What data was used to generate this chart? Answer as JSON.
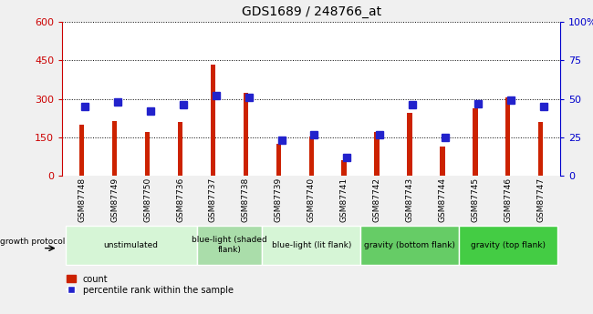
{
  "title": "GDS1689 / 248766_at",
  "samples": [
    "GSM87748",
    "GSM87749",
    "GSM87750",
    "GSM87736",
    "GSM87737",
    "GSM87738",
    "GSM87739",
    "GSM87740",
    "GSM87741",
    "GSM87742",
    "GSM87743",
    "GSM87744",
    "GSM87745",
    "GSM87746",
    "GSM87747"
  ],
  "counts": [
    200,
    215,
    170,
    210,
    435,
    325,
    125,
    155,
    60,
    170,
    245,
    115,
    265,
    305,
    210
  ],
  "percentile": [
    45,
    48,
    42,
    46,
    52,
    51,
    23,
    27,
    12,
    27,
    46,
    25,
    47,
    49,
    45
  ],
  "ylim_left": [
    0,
    600
  ],
  "ylim_right": [
    0,
    100
  ],
  "yticks_left": [
    0,
    150,
    300,
    450,
    600
  ],
  "yticks_right": [
    0,
    25,
    50,
    75,
    100
  ],
  "groups": [
    {
      "label": "unstimulated",
      "start": 0,
      "end": 4,
      "color": "#d6f5d6"
    },
    {
      "label": "blue-light (shaded\nflank)",
      "start": 4,
      "end": 6,
      "color": "#aaddaa"
    },
    {
      "label": "blue-light (lit flank)",
      "start": 6,
      "end": 9,
      "color": "#d6f5d6"
    },
    {
      "label": "gravity (bottom flank)",
      "start": 9,
      "end": 12,
      "color": "#66cc66"
    },
    {
      "label": "gravity (top flank)",
      "start": 12,
      "end": 15,
      "color": "#44cc44"
    }
  ],
  "bar_color_red": "#cc2200",
  "bar_color_blue": "#2222cc",
  "bar_width": 0.15,
  "blue_marker_size": 6,
  "tick_color_left": "#cc0000",
  "tick_color_right": "#0000cc",
  "fig_bg": "#f0f0f0",
  "plot_bg": "#ffffff",
  "sample_area_color": "#cccccc",
  "growth_protocol_label": "growth protocol",
  "legend_count": "count",
  "legend_pct": "percentile rank within the sample"
}
